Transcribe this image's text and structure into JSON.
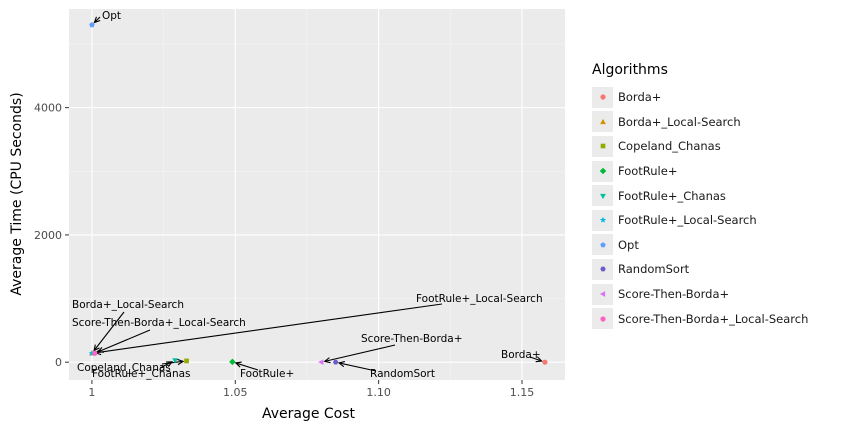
{
  "chart_data": {
    "type": "scatter",
    "xlabel": "Average Cost",
    "ylabel": "Average Time (CPU Seconds)",
    "xlim": [
      0.992,
      1.165
    ],
    "ylim": [
      -280,
      5550
    ],
    "x_ticks": [
      {
        "value": 1,
        "label": "1"
      },
      {
        "value": 1.05,
        "label": "1.05"
      },
      {
        "value": 1.1,
        "label": "1.10"
      },
      {
        "value": 1.15,
        "label": "1.15"
      }
    ],
    "y_ticks": [
      {
        "value": 0,
        "label": "0"
      },
      {
        "value": 2000,
        "label": "2000"
      },
      {
        "value": 4000,
        "label": "4000"
      }
    ],
    "grid": true,
    "legend_title": "Algorithms",
    "legend_position": "right",
    "series": [
      {
        "name": "Borda+",
        "color": "#F8766D",
        "shape": "circle",
        "x": 1.158,
        "y": 0
      },
      {
        "name": "Borda+_Local-Search",
        "color": "#D39200",
        "shape": "triangle-up",
        "x": 1.0,
        "y": 140
      },
      {
        "name": "Copeland_Chanas",
        "color": "#93AA00",
        "shape": "square",
        "x": 1.033,
        "y": 20
      },
      {
        "name": "FootRule+",
        "color": "#00BA38",
        "shape": "diamond",
        "x": 1.049,
        "y": 5
      },
      {
        "name": "FootRule+_Chanas",
        "color": "#00C19F",
        "shape": "triangle-down",
        "x": 1.029,
        "y": 30
      },
      {
        "name": "FootRule+_Local-Search",
        "color": "#00B9E3",
        "shape": "star",
        "x": 1.0,
        "y": 140
      },
      {
        "name": "Opt",
        "color": "#619CFF",
        "shape": "pentagon",
        "x": 1.0,
        "y": 5300
      },
      {
        "name": "RandomSort",
        "color": "#6E5ACD",
        "shape": "hexagon",
        "x": 1.085,
        "y": 0
      },
      {
        "name": "Score-Then-Borda+",
        "color": "#DB72FB",
        "shape": "triangle-left",
        "x": 1.08,
        "y": 0
      },
      {
        "name": "Score-Then-Borda+_Local-Search",
        "color": "#FF61C3",
        "shape": "circle",
        "x": 1.001,
        "y": 140
      }
    ],
    "annotations": [
      {
        "text": "Opt",
        "target": "Opt"
      },
      {
        "text": "Borda+_Local-Search",
        "target": "Borda+_Local-Search"
      },
      {
        "text": "Score-Then-Borda+_Local-Search",
        "target": "Score-Then-Borda+_Local-Search"
      },
      {
        "text": "FootRule+_Local-Search",
        "target": "FootRule+_Local-Search"
      },
      {
        "text": "Score-Then-Borda+",
        "target": "Score-Then-Borda+"
      },
      {
        "text": "Borda+",
        "target": "Borda+"
      },
      {
        "text": "Copeland_Chanas",
        "target": "Copeland_Chanas"
      },
      {
        "text": "FootRule+_Chanas",
        "target": "FootRule+_Chanas"
      },
      {
        "text": "FootRule+",
        "target": "FootRule+"
      },
      {
        "text": "RandomSort",
        "target": "RandomSort"
      }
    ]
  }
}
